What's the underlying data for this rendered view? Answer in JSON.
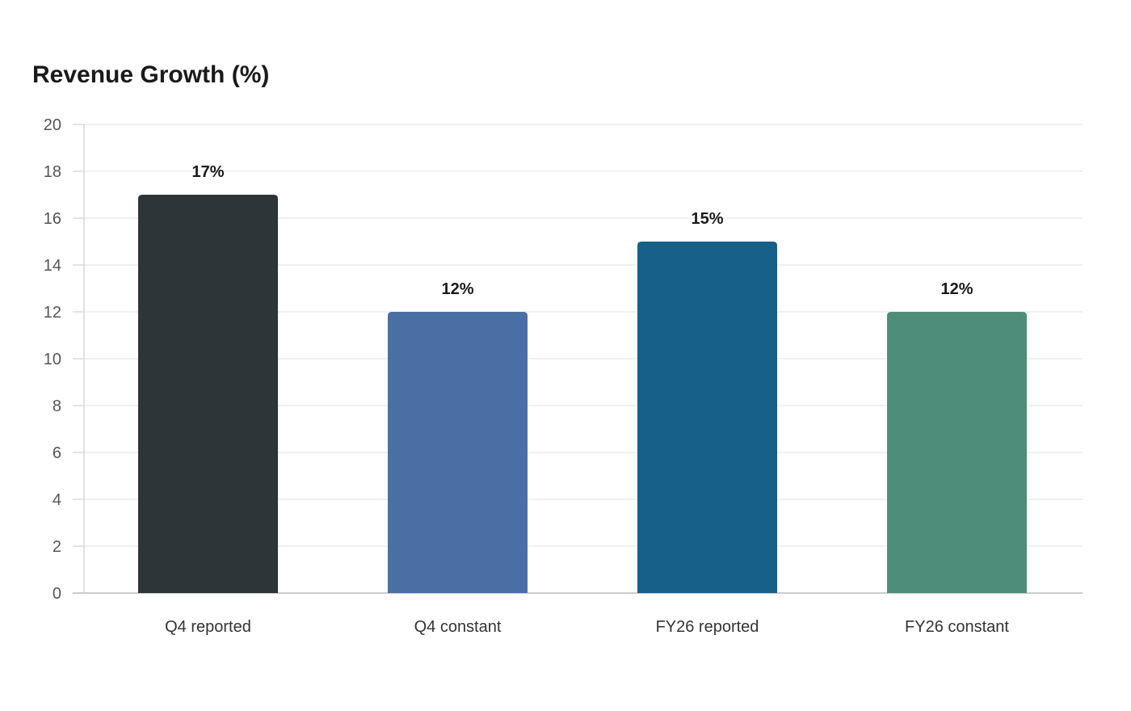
{
  "chart_data": {
    "type": "bar",
    "title": "Revenue Growth (%)",
    "xlabel": "",
    "ylabel": "",
    "categories": [
      "Q4 reported",
      "Q4 constant",
      "FY26 reported",
      "FY26 constant"
    ],
    "values": [
      17,
      12,
      15,
      12
    ],
    "data_labels": [
      "17%",
      "12%",
      "15%",
      "12%"
    ],
    "bar_colors": [
      "#2d3538",
      "#4a6fa5",
      "#17608a",
      "#4e8d7a"
    ],
    "ylim": [
      0,
      20
    ],
    "yticks": [
      0,
      2,
      4,
      6,
      8,
      10,
      12,
      14,
      16,
      18,
      20
    ],
    "grid": true,
    "legend": "none"
  }
}
